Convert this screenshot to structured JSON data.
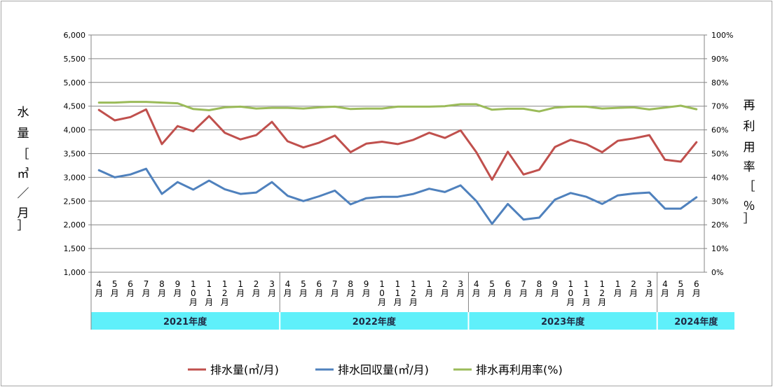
{
  "chart_data": {
    "type": "line",
    "left_axis": {
      "label_chars": [
        "水",
        "量",
        "［",
        "㎥",
        "／",
        "月",
        "］"
      ],
      "ticks": [
        "1,000",
        "1,500",
        "2,000",
        "2,500",
        "3,000",
        "3,500",
        "4,000",
        "4,500",
        "5,000",
        "5,500",
        "6,000"
      ],
      "ylim": [
        1000,
        6000
      ]
    },
    "right_axis": {
      "label_chars": [
        "再",
        "利",
        "用",
        "率",
        "［",
        "％",
        "］"
      ],
      "ticks": [
        "0%",
        "10%",
        "20%",
        "30%",
        "40%",
        "50%",
        "60%",
        "70%",
        "80%",
        "90%",
        "100%"
      ],
      "ylim": [
        0,
        100
      ]
    },
    "x_labels": [
      [
        "4",
        "月"
      ],
      [
        "5",
        "月"
      ],
      [
        "6",
        "月"
      ],
      [
        "7",
        "月"
      ],
      [
        "8",
        "月"
      ],
      [
        "9",
        "月"
      ],
      [
        "1",
        "0",
        "月"
      ],
      [
        "1",
        "1",
        "月"
      ],
      [
        "1",
        "2",
        "月"
      ],
      [
        "1",
        "月"
      ],
      [
        "2",
        "月"
      ],
      [
        "3",
        "月"
      ],
      [
        "4",
        "月"
      ],
      [
        "5",
        "月"
      ],
      [
        "6",
        "月"
      ],
      [
        "7",
        "月"
      ],
      [
        "8",
        "月"
      ],
      [
        "9",
        "月"
      ],
      [
        "1",
        "0",
        "月"
      ],
      [
        "1",
        "1",
        "月"
      ],
      [
        "1",
        "2",
        "月"
      ],
      [
        "1",
        "月"
      ],
      [
        "2",
        "月"
      ],
      [
        "3",
        "月"
      ],
      [
        "4",
        "月"
      ],
      [
        "5",
        "月"
      ],
      [
        "6",
        "月"
      ],
      [
        "7",
        "月"
      ],
      [
        "8",
        "月"
      ],
      [
        "9",
        "月"
      ],
      [
        "1",
        "0",
        "月"
      ],
      [
        "1",
        "1",
        "月"
      ],
      [
        "1",
        "2",
        "月"
      ],
      [
        "1",
        "月"
      ],
      [
        "2",
        "月"
      ],
      [
        "3",
        "月"
      ],
      [
        "4",
        "月"
      ],
      [
        "5",
        "月"
      ],
      [
        "6",
        "月"
      ]
    ],
    "years": [
      {
        "label": "2021年度",
        "count": 12
      },
      {
        "label": "2022年度",
        "count": 12
      },
      {
        "label": "2023年度",
        "count": 12
      },
      {
        "label": "2024年度",
        "count": 3
      }
    ],
    "grid": true,
    "legend_position": "bottom",
    "series": [
      {
        "name": "排水量(㎥/月)",
        "axis": "left",
        "color": "#c0504d",
        "values": [
          4420,
          4200,
          4270,
          4430,
          3700,
          4080,
          3970,
          4290,
          3940,
          3800,
          3890,
          4170,
          3760,
          3630,
          3730,
          3880,
          3530,
          3710,
          3750,
          3700,
          3790,
          3940,
          3830,
          3990,
          3530,
          2950,
          3540,
          3060,
          3160,
          3640,
          3790,
          3700,
          3530,
          3770,
          3820,
          3890,
          3370,
          3330,
          3740
        ]
      },
      {
        "name": "排水回収量(㎥/月)",
        "axis": "left",
        "color": "#4f81bd",
        "values": [
          3150,
          3000,
          3060,
          3180,
          2650,
          2900,
          2740,
          2930,
          2750,
          2650,
          2680,
          2900,
          2610,
          2500,
          2600,
          2720,
          2430,
          2560,
          2590,
          2590,
          2650,
          2760,
          2690,
          2830,
          2500,
          2020,
          2440,
          2110,
          2150,
          2530,
          2670,
          2590,
          2440,
          2620,
          2660,
          2680,
          2340,
          2340,
          2580
        ]
      },
      {
        "name": "排水再利用率(%)",
        "axis": "right",
        "color": "#9bbb59",
        "values": [
          71.5,
          71.5,
          71.8,
          71.8,
          71.5,
          71.2,
          68.8,
          68.3,
          69.5,
          69.8,
          69.0,
          69.3,
          69.3,
          69.0,
          69.5,
          69.8,
          68.8,
          69.0,
          69.0,
          69.8,
          69.8,
          69.8,
          70.0,
          70.8,
          70.8,
          68.5,
          68.9,
          68.9,
          67.8,
          69.4,
          69.8,
          69.8,
          69.0,
          69.3,
          69.5,
          68.6,
          69.4,
          70.2,
          68.7
        ]
      }
    ]
  }
}
